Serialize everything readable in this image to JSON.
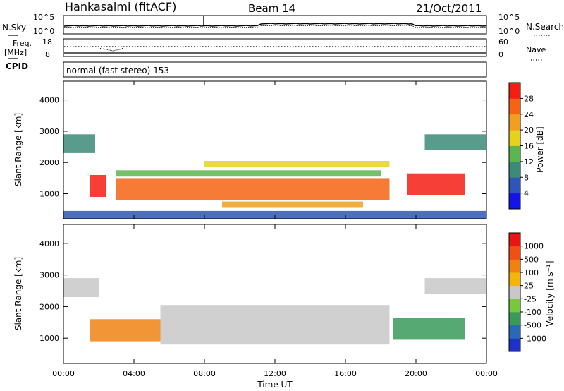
{
  "header": {
    "station": "Hankasalmi (fitACF)",
    "beam": "Beam 14",
    "date": "21/Oct/2011"
  },
  "noise_panel": {
    "left_label": "N.Sky",
    "right_label": "N.Search",
    "left_ticks": [
      "10^5",
      "10^0"
    ],
    "right_ticks": [
      "10^5",
      "10^0"
    ]
  },
  "freq_panel": {
    "left_label_1": "Freq.",
    "left_label_2": "[MHz]",
    "left_ticks": [
      "18",
      "8"
    ],
    "right_label": "Nave",
    "right_ticks": [
      "60",
      "0"
    ]
  },
  "cpid_panel": {
    "label": "CPID",
    "text": "normal (fast stereo) 153"
  },
  "chart_data": [
    {
      "type": "heatmap",
      "name": "power",
      "xlabel": "",
      "ylabel": "Slant Range [km]",
      "x_ticks": [
        "00:00",
        "04:00",
        "08:00",
        "12:00",
        "16:00",
        "20:00",
        "00:00"
      ],
      "y_ticks": [
        "1000",
        "2000",
        "3000",
        "4000"
      ],
      "ylim": [
        200,
        4600
      ],
      "colorbar": {
        "label": "Power [dB]",
        "ticks": [
          "4",
          "8",
          "12",
          "16",
          "20",
          "24",
          "28"
        ],
        "colors": [
          "#1414e6",
          "#2f55b9",
          "#3c8a78",
          "#5cb650",
          "#e6d21e",
          "#f0a01e",
          "#f56414",
          "#f51e14"
        ]
      },
      "bands": [
        {
          "name": "dusk echo",
          "t_start_h": 1.5,
          "t_end_h": 2.4,
          "range_km_low": 900,
          "range_km_high": 1600,
          "level": 7
        },
        {
          "name": "main arc",
          "t_start_h": 3.0,
          "t_end_h": 18.5,
          "range_km_low": 800,
          "range_km_high": 1500,
          "level": 6
        },
        {
          "name": "lower arc",
          "t_start_h": 9.0,
          "t_end_h": 17.0,
          "range_km_low": 550,
          "range_km_high": 750,
          "level": 5
        },
        {
          "name": "upper band",
          "t_start_h": 3.0,
          "t_end_h": 18.0,
          "range_km_low": 1550,
          "range_km_high": 1750,
          "level": 3
        },
        {
          "name": "mid band",
          "t_start_h": 8.0,
          "t_end_h": 18.5,
          "range_km_low": 1850,
          "range_km_high": 2050,
          "level": 4
        },
        {
          "name": "evening echo",
          "t_start_h": 19.5,
          "t_end_h": 22.8,
          "range_km_low": 950,
          "range_km_high": 1650,
          "level": 7
        },
        {
          "name": "morning far",
          "t_start_h": 0.0,
          "t_end_h": 1.8,
          "range_km_low": 2300,
          "range_km_high": 2900,
          "level": 2
        },
        {
          "name": "late far",
          "t_start_h": 20.5,
          "t_end_h": 24.0,
          "range_km_low": 2400,
          "range_km_high": 2900,
          "level": 2
        },
        {
          "name": "ground scatter",
          "t_start_h": 0.0,
          "t_end_h": 24.0,
          "range_km_low": 200,
          "range_km_high": 450,
          "level": 1
        }
      ]
    },
    {
      "type": "heatmap",
      "name": "velocity",
      "xlabel": "Time UT",
      "ylabel": "Slant Range [km]",
      "x_ticks": [
        "00:00",
        "04:00",
        "08:00",
        "12:00",
        "16:00",
        "20:00",
        "00:00"
      ],
      "y_ticks": [
        "1000",
        "2000",
        "3000",
        "4000"
      ],
      "ylim": [
        200,
        4600
      ],
      "colorbar": {
        "label": "Velocity [m s⁻¹]",
        "ticks": [
          "1000",
          "500",
          "100",
          "25",
          "-25",
          "-100",
          "-500",
          "-1000"
        ],
        "colors": [
          "#1e32c8",
          "#2a6ab4",
          "#3a9a5a",
          "#78c83c",
          "#c8c8c8",
          "#f5b40a",
          "#f08214",
          "#f05014",
          "#eb1414"
        ]
      },
      "bands": [
        {
          "name": "dusk echo",
          "t_start_h": 1.5,
          "t_end_h": 5.5,
          "range_km_low": 900,
          "range_km_high": 1600,
          "level": 6
        },
        {
          "name": "main arc",
          "t_start_h": 5.5,
          "t_end_h": 18.5,
          "range_km_low": 800,
          "range_km_high": 2050,
          "level": 4
        },
        {
          "name": "evening echo",
          "t_start_h": 18.7,
          "t_end_h": 22.8,
          "range_km_low": 950,
          "range_km_high": 1650,
          "level": 2
        },
        {
          "name": "morning far",
          "t_start_h": 0.0,
          "t_end_h": 2.0,
          "range_km_low": 2300,
          "range_km_high": 2900,
          "level": 4
        },
        {
          "name": "late far",
          "t_start_h": 20.5,
          "t_end_h": 24.0,
          "range_km_low": 2400,
          "range_km_high": 2900,
          "level": 4
        }
      ]
    }
  ]
}
